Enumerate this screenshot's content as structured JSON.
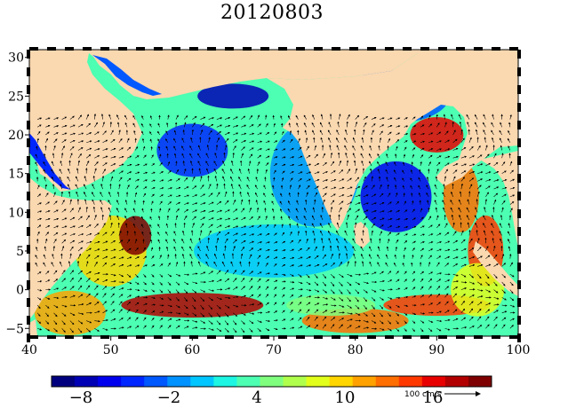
{
  "title": "20120803",
  "colors": {
    "land": "#fad8b0",
    "frame": "#000000",
    "colormap": [
      "#00007f",
      "#0000b5",
      "#0000ee",
      "#0026ff",
      "#0058ff",
      "#0092ff",
      "#00c6ff",
      "#1cf6e2",
      "#4cffb2",
      "#80ff7e",
      "#b0ff4c",
      "#e2ff1c",
      "#ffd600",
      "#ffa200",
      "#ff6e00",
      "#ff3800",
      "#e80000",
      "#b20000",
      "#7f0000"
    ]
  },
  "map": {
    "lon_range": [
      40,
      100
    ],
    "lat_range": [
      -6,
      31
    ],
    "x_ticks": [
      "40",
      "50",
      "60",
      "70",
      "80",
      "90",
      "100"
    ],
    "y_ticks": [
      "30",
      "25",
      "20",
      "15",
      "10",
      "5",
      "0",
      "−5"
    ],
    "x_tick_values": [
      40,
      50,
      60,
      70,
      80,
      90,
      100
    ],
    "y_tick_values": [
      30,
      25,
      20,
      15,
      10,
      5,
      0,
      -5
    ]
  },
  "colorbar": {
    "min": -10,
    "max": 20,
    "tick_labels": [
      "−8",
      "−2",
      "4",
      "10",
      "16"
    ],
    "tick_values": [
      -8,
      -2,
      4,
      10,
      16
    ]
  },
  "vector_scale": {
    "label": "100 cm/s"
  }
}
